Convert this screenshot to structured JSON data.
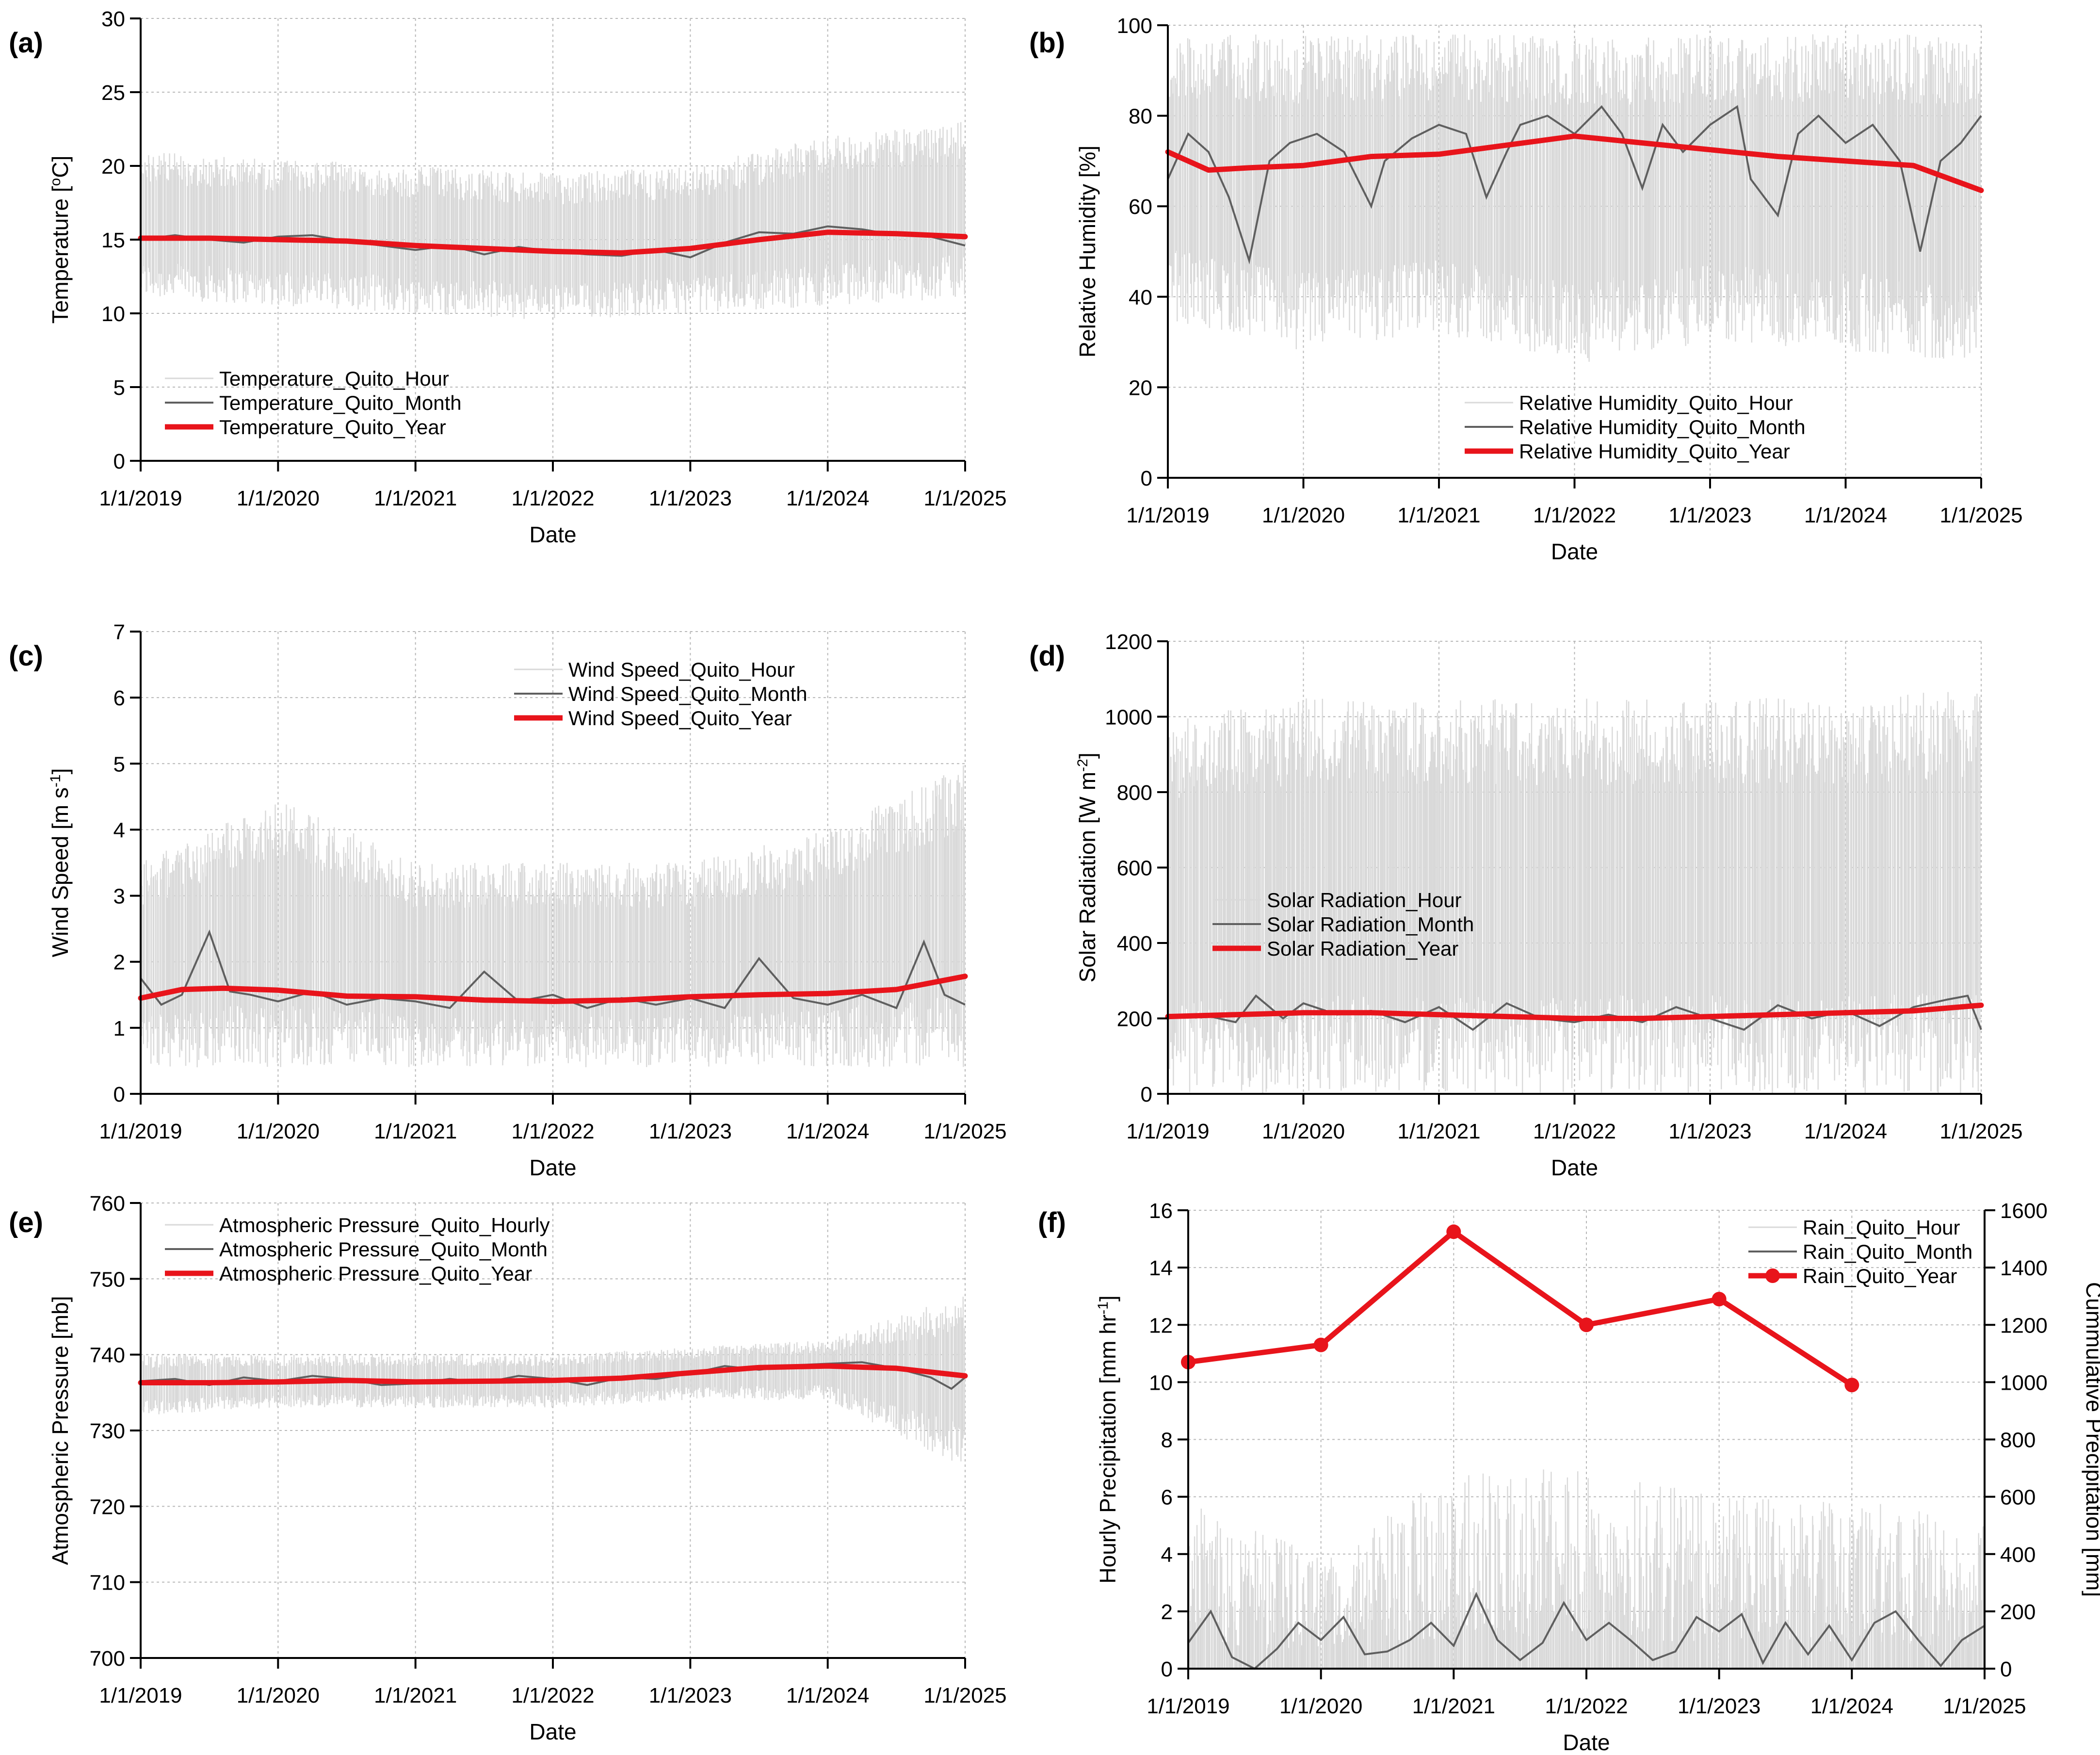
{
  "figure": {
    "x_tick_labels": [
      "1/1/2019",
      "1/1/2020",
      "1/1/2021",
      "1/1/2022",
      "1/1/2023",
      "1/1/2024",
      "1/1/2025"
    ],
    "x_label": "Date",
    "colors": {
      "hour": "#d9d9d9",
      "month": "#5f5f5f",
      "year": "#e8141b",
      "grid": "#b8b8b8"
    }
  },
  "chart_data": [
    {
      "panel": "(a)",
      "type": "line",
      "title": "",
      "xlabel": "Date",
      "ylabel": "Temperature [°C]",
      "ylabel_parts": [
        "Temperature [",
        "o",
        "C]"
      ],
      "xlim": [
        2019,
        2025
      ],
      "ylim": [
        0,
        30
      ],
      "yticks": [
        0,
        5,
        10,
        15,
        20,
        25,
        30
      ],
      "grid": true,
      "legend_position": "lower-left",
      "series": [
        {
          "name": "Temperature_Quito_Hour",
          "style": "hour",
          "band": {
            "low": [
              11,
              10.5,
              10,
              9.5,
              10,
              10.5,
              11
            ],
            "high": [
              21,
              20.5,
              20,
              19.5,
              20,
              22,
              23
            ]
          }
        },
        {
          "name": "Temperature_Quito_Month",
          "style": "month",
          "x": [
            2019.0,
            2019.25,
            2019.5,
            2019.75,
            2020.0,
            2020.25,
            2020.5,
            2020.75,
            2021.0,
            2021.25,
            2021.5,
            2021.75,
            2022.0,
            2022.25,
            2022.5,
            2022.75,
            2023.0,
            2023.25,
            2023.5,
            2023.75,
            2024.0,
            2024.25,
            2024.5,
            2024.75,
            2025.0
          ],
          "y": [
            15.0,
            15.3,
            15.0,
            14.8,
            15.2,
            15.3,
            14.9,
            14.6,
            14.3,
            14.6,
            14.0,
            14.5,
            14.2,
            14.0,
            13.9,
            14.3,
            13.8,
            14.8,
            15.5,
            15.4,
            15.9,
            15.7,
            15.3,
            15.2,
            14.6
          ]
        },
        {
          "name": "Temperature_Quito_Year",
          "style": "year",
          "x": [
            2019,
            2019.5,
            2020,
            2020.5,
            2021,
            2021.5,
            2022,
            2022.5,
            2023,
            2023.5,
            2024,
            2024.5,
            2025
          ],
          "y": [
            15.1,
            15.1,
            15.0,
            14.9,
            14.6,
            14.4,
            14.2,
            14.1,
            14.4,
            15.0,
            15.5,
            15.4,
            15.2
          ]
        }
      ]
    },
    {
      "panel": "(b)",
      "type": "line",
      "title": "",
      "xlabel": "Date",
      "ylabel": "Relative Humidity [%]",
      "xlim": [
        2019,
        2025
      ],
      "ylim": [
        0,
        100
      ],
      "yticks": [
        0,
        20,
        40,
        60,
        80,
        100
      ],
      "grid": true,
      "legend_position": "lower-center",
      "series": [
        {
          "name": "Relative Humidity_Quito_Hour",
          "style": "hour",
          "band": {
            "low": [
              35,
              28,
              32,
              25,
              30,
              28,
              25
            ],
            "high": [
              98,
              98,
              98,
              98,
              98,
              98,
              98
            ]
          }
        },
        {
          "name": "Relative Humidity_Quito_Month",
          "style": "month",
          "x": [
            2019.0,
            2019.15,
            2019.3,
            2019.45,
            2019.6,
            2019.75,
            2019.9,
            2020.1,
            2020.3,
            2020.5,
            2020.6,
            2020.8,
            2021.0,
            2021.2,
            2021.35,
            2021.5,
            2021.6,
            2021.8,
            2022.0,
            2022.2,
            2022.35,
            2022.5,
            2022.65,
            2022.8,
            2023.0,
            2023.2,
            2023.3,
            2023.5,
            2023.65,
            2023.8,
            2024.0,
            2024.2,
            2024.4,
            2024.55,
            2024.7,
            2024.85,
            2025.0
          ],
          "y": [
            66,
            76,
            72,
            62,
            48,
            70,
            74,
            76,
            72,
            60,
            70,
            75,
            78,
            76,
            62,
            72,
            78,
            80,
            76,
            82,
            76,
            64,
            78,
            72,
            78,
            82,
            66,
            58,
            76,
            80,
            74,
            78,
            70,
            50,
            70,
            74,
            80
          ]
        },
        {
          "name": "Relative Humidity_Quito_Year",
          "style": "year",
          "x": [
            2019,
            2019.3,
            2019.6,
            2020,
            2020.5,
            2021,
            2021.5,
            2022,
            2022.5,
            2023,
            2023.5,
            2024,
            2024.5,
            2025
          ],
          "y": [
            72,
            68,
            68.5,
            69,
            71,
            71.5,
            73.5,
            75.5,
            74,
            72.5,
            71,
            70,
            69,
            63.5
          ]
        }
      ]
    },
    {
      "panel": "(c)",
      "type": "line",
      "title": "",
      "xlabel": "Date",
      "ylabel": "Wind Speed [m s-1]",
      "ylabel_parts": [
        "Wind Speed [m s",
        "-1",
        "]"
      ],
      "xlim": [
        2019,
        2025
      ],
      "ylim": [
        0,
        7
      ],
      "yticks": [
        0,
        1,
        2,
        3,
        4,
        5,
        6,
        7
      ],
      "grid": true,
      "legend_position": "top-center",
      "series": [
        {
          "name": "Wind Speed_Quito_Hour",
          "style": "hour",
          "band": {
            "low": [
              0.4,
              0.4,
              0.4,
              0.4,
              0.4,
              0.4,
              0.4
            ],
            "high": [
              3.5,
              4.5,
              3.5,
              3.5,
              3.5,
              4.0,
              5.0
            ]
          }
        },
        {
          "name": "Wind Speed_Quito_Month",
          "style": "month",
          "x": [
            2019.0,
            2019.15,
            2019.3,
            2019.5,
            2019.65,
            2019.8,
            2020.0,
            2020.25,
            2020.5,
            2020.75,
            2021.0,
            2021.25,
            2021.5,
            2021.75,
            2022.0,
            2022.25,
            2022.5,
            2022.75,
            2023.0,
            2023.25,
            2023.5,
            2023.75,
            2024.0,
            2024.25,
            2024.5,
            2024.7,
            2024.85,
            2025.0
          ],
          "y": [
            1.75,
            1.35,
            1.5,
            2.45,
            1.55,
            1.5,
            1.4,
            1.55,
            1.35,
            1.45,
            1.4,
            1.3,
            1.85,
            1.4,
            1.5,
            1.3,
            1.45,
            1.35,
            1.45,
            1.3,
            2.05,
            1.45,
            1.35,
            1.5,
            1.3,
            2.3,
            1.5,
            1.35
          ]
        },
        {
          "name": "Wind Speed_Quito_Year",
          "style": "year",
          "x": [
            2019,
            2019.3,
            2019.6,
            2020,
            2020.5,
            2021,
            2021.5,
            2022,
            2022.5,
            2023,
            2023.5,
            2024,
            2024.5,
            2025
          ],
          "y": [
            1.45,
            1.58,
            1.6,
            1.57,
            1.48,
            1.47,
            1.42,
            1.4,
            1.42,
            1.47,
            1.5,
            1.52,
            1.58,
            1.78
          ]
        }
      ]
    },
    {
      "panel": "(d)",
      "type": "line",
      "title": "",
      "xlabel": "Date",
      "ylabel": "Solar Radiation [W m-2]",
      "ylabel_parts": [
        "Solar Radiation [W m",
        "-2",
        "]"
      ],
      "xlim": [
        2019,
        2025
      ],
      "ylim": [
        0,
        1200
      ],
      "yticks": [
        0,
        200,
        400,
        600,
        800,
        1000,
        1200
      ],
      "grid": true,
      "legend_position": "middle-left",
      "series": [
        {
          "name": "Solar Radiation_Hour",
          "style": "hour",
          "band": {
            "low": [
              0,
              0,
              0,
              0,
              0,
              0,
              0
            ],
            "high": [
              1000,
              1050,
              1050,
              1050,
              1050,
              1050,
              1080
            ]
          }
        },
        {
          "name": "Solar Radiation_Month",
          "style": "month",
          "x": [
            2019.0,
            2019.25,
            2019.5,
            2019.65,
            2019.85,
            2020.0,
            2020.25,
            2020.5,
            2020.75,
            2021.0,
            2021.25,
            2021.5,
            2021.75,
            2022.0,
            2022.25,
            2022.5,
            2022.75,
            2023.0,
            2023.25,
            2023.5,
            2023.75,
            2024.0,
            2024.25,
            2024.5,
            2024.75,
            2024.9,
            2025.0
          ],
          "y": [
            200,
            210,
            190,
            260,
            200,
            240,
            210,
            220,
            190,
            230,
            170,
            240,
            200,
            190,
            210,
            190,
            230,
            200,
            170,
            235,
            200,
            220,
            180,
            230,
            250,
            260,
            170
          ]
        },
        {
          "name": "Solar Radiation_Year",
          "style": "year",
          "x": [
            2019,
            2019.5,
            2020,
            2020.5,
            2021,
            2021.5,
            2022,
            2022.5,
            2023,
            2023.5,
            2024,
            2024.5,
            2025
          ],
          "y": [
            205,
            210,
            215,
            215,
            210,
            205,
            200,
            200,
            205,
            210,
            215,
            220,
            235
          ]
        }
      ]
    },
    {
      "panel": "(e)",
      "type": "line",
      "title": "",
      "xlabel": "Date",
      "ylabel": "Atmospheric Pressure [mb]",
      "xlim": [
        2019,
        2025
      ],
      "ylim": [
        700,
        760
      ],
      "yticks": [
        700,
        710,
        720,
        730,
        740,
        750,
        760
      ],
      "grid": true,
      "legend_position": "top-left",
      "series": [
        {
          "name": "Atmospheric Pressure_Quito_Hourly",
          "style": "hour",
          "band": {
            "low": [
              732,
              733,
              733,
              733,
              734,
              734,
              725
            ],
            "high": [
              740,
              740,
              740,
              740,
              741,
              742,
              748
            ]
          }
        },
        {
          "name": "Atmospheric Pressure_Quito_Month",
          "style": "month",
          "x": [
            2019.0,
            2019.25,
            2019.5,
            2019.75,
            2020.0,
            2020.25,
            2020.5,
            2020.75,
            2021.0,
            2021.25,
            2021.5,
            2021.75,
            2022.0,
            2022.25,
            2022.5,
            2022.75,
            2023.0,
            2023.25,
            2023.5,
            2023.75,
            2024.0,
            2024.25,
            2024.5,
            2024.75,
            2024.9,
            2025.0
          ],
          "y": [
            736.5,
            736.8,
            736.0,
            737.0,
            736.5,
            737.2,
            736.8,
            736.0,
            736.2,
            736.8,
            736.3,
            737.2,
            736.8,
            736.0,
            737.0,
            736.8,
            737.5,
            738.5,
            738.0,
            738.6,
            738.8,
            739.0,
            738.2,
            737.0,
            735.5,
            737.0
          ]
        },
        {
          "name": "Atmospheric Pressure_Quito_Year",
          "style": "year",
          "x": [
            2019,
            2019.5,
            2020,
            2020.5,
            2021,
            2021.5,
            2022,
            2022.5,
            2023,
            2023.5,
            2024,
            2024.5,
            2025
          ],
          "y": [
            736.3,
            736.3,
            736.4,
            736.6,
            736.4,
            736.5,
            736.6,
            736.9,
            737.6,
            738.3,
            738.5,
            738.2,
            737.2
          ]
        }
      ]
    },
    {
      "panel": "(f)",
      "type": "line",
      "title": "",
      "xlabel": "Date",
      "ylabel": "Hourly Precipitation [mm hr-1]",
      "ylabel_parts": [
        "Hourly Precipitation [mm hr",
        "-1",
        "]"
      ],
      "y2label": "Cummulative Precipitation [mm]",
      "xlim": [
        2019,
        2025
      ],
      "ylim": [
        0,
        16
      ],
      "y2lim": [
        0,
        1600
      ],
      "yticks": [
        0,
        2,
        4,
        6,
        8,
        10,
        12,
        14,
        16
      ],
      "y2ticks": [
        0,
        200,
        400,
        600,
        800,
        1000,
        1200,
        1400,
        1600
      ],
      "grid": true,
      "legend_position": "top-right",
      "series": [
        {
          "name": "Rain_Quito_Hour",
          "style": "hour",
          "band": {
            "low": [
              0,
              0,
              0,
              0,
              0,
              0,
              0
            ],
            "high": [
              6,
              4,
              7,
              7,
              6,
              6,
              5
            ]
          }
        },
        {
          "name": "Rain_Quito_Month",
          "style": "month",
          "axis": "y",
          "x": [
            2019.0,
            2019.17,
            2019.33,
            2019.5,
            2019.67,
            2019.83,
            2020.0,
            2020.17,
            2020.33,
            2020.5,
            2020.67,
            2020.83,
            2021.0,
            2021.17,
            2021.33,
            2021.5,
            2021.67,
            2021.83,
            2022.0,
            2022.17,
            2022.33,
            2022.5,
            2022.67,
            2022.83,
            2023.0,
            2023.17,
            2023.33,
            2023.5,
            2023.67,
            2023.83,
            2024.0,
            2024.17,
            2024.33,
            2024.5,
            2024.67,
            2024.83,
            2025.0
          ],
          "y": [
            0.9,
            2.0,
            0.4,
            0.0,
            0.7,
            1.6,
            1.0,
            1.8,
            0.5,
            0.6,
            1.0,
            1.6,
            0.8,
            2.6,
            1.0,
            0.3,
            0.9,
            2.3,
            1.0,
            1.6,
            1.0,
            0.3,
            0.6,
            1.8,
            1.3,
            1.9,
            0.2,
            1.6,
            0.5,
            1.5,
            0.3,
            1.6,
            2.0,
            1.0,
            0.1,
            1.0,
            1.5
          ]
        },
        {
          "name": "Rain_Quito_Year",
          "style": "year-marker",
          "axis": "y2",
          "x": [
            2019,
            2020,
            2021,
            2022,
            2023,
            2024
          ],
          "y": [
            1070,
            1130,
            1525,
            1200,
            1290,
            990
          ]
        }
      ]
    }
  ]
}
